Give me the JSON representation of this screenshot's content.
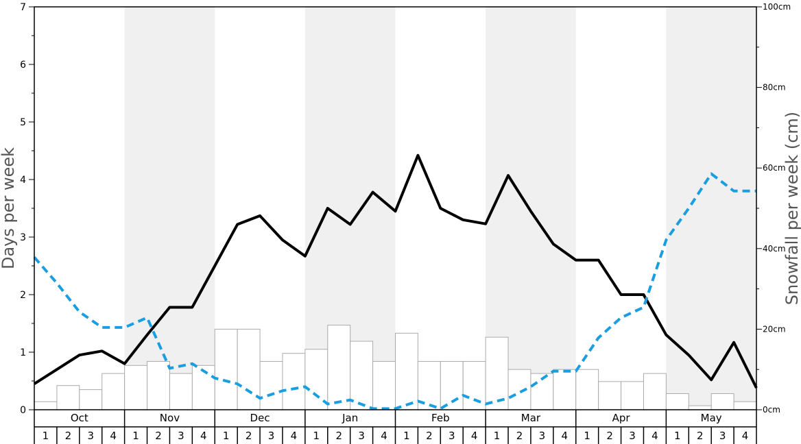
{
  "chart_data": {
    "type": "bar+line",
    "title": "",
    "ylabel_left": "Days per week",
    "ylabel_right": "Snowfall per week (cm)",
    "ylim_left": [
      0,
      7
    ],
    "ylim_right": [
      0,
      100
    ],
    "left_ticks": [
      "0",
      "1",
      "2",
      "3",
      "4",
      "5",
      "6",
      "7"
    ],
    "right_ticks": [
      "0cm",
      "20cm",
      "40cm",
      "60cm",
      "80cm",
      "100cm"
    ],
    "months": [
      "Oct",
      "Nov",
      "Dec",
      "Jan",
      "Feb",
      "Mar",
      "Apr",
      "May"
    ],
    "weeks": [
      "1",
      "2",
      "3",
      "4"
    ],
    "shaded_months": [
      "Nov",
      "Jan",
      "Mar",
      "May"
    ],
    "colors": {
      "bar_fill": "#ffffff",
      "bar_stroke": "#aaaaaa",
      "shade": "#f0f0f0",
      "solid_line": "#000000",
      "dashed_line": "#1a9ee0"
    },
    "series": [
      {
        "kind": "bar",
        "axis": "right",
        "values": [
          2,
          6,
          5,
          9,
          11,
          12,
          9,
          11,
          20,
          20,
          12,
          14,
          15,
          21,
          17,
          12,
          19,
          12,
          12,
          12,
          18,
          10,
          9,
          10,
          10,
          7,
          7,
          9,
          4,
          1,
          4,
          2
        ]
      },
      {
        "kind": "line",
        "style": "solid",
        "axis": "left",
        "values": [
          0.45,
          0.7,
          0.95,
          1.02,
          0.8,
          1.3,
          1.78,
          1.78,
          2.5,
          3.22,
          3.37,
          2.95,
          2.67,
          3.5,
          3.22,
          3.78,
          3.45,
          4.42,
          3.5,
          3.3,
          3.23,
          4.07,
          3.45,
          2.88,
          2.6,
          2.6,
          2.0,
          2.0,
          1.3,
          0.95,
          0.52,
          1.17,
          0.38
        ]
      },
      {
        "kind": "line",
        "style": "dashed",
        "axis": "left",
        "values": [
          2.65,
          2.2,
          1.7,
          1.43,
          1.43,
          1.6,
          0.72,
          0.8,
          0.55,
          0.45,
          0.2,
          0.33,
          0.4,
          0.1,
          0.17,
          0.02,
          0.02,
          0.15,
          0.02,
          0.25,
          0.1,
          0.2,
          0.4,
          0.67,
          0.67,
          1.25,
          1.6,
          1.78,
          2.95,
          3.5,
          4.1,
          3.8,
          3.8
        ]
      }
    ]
  }
}
